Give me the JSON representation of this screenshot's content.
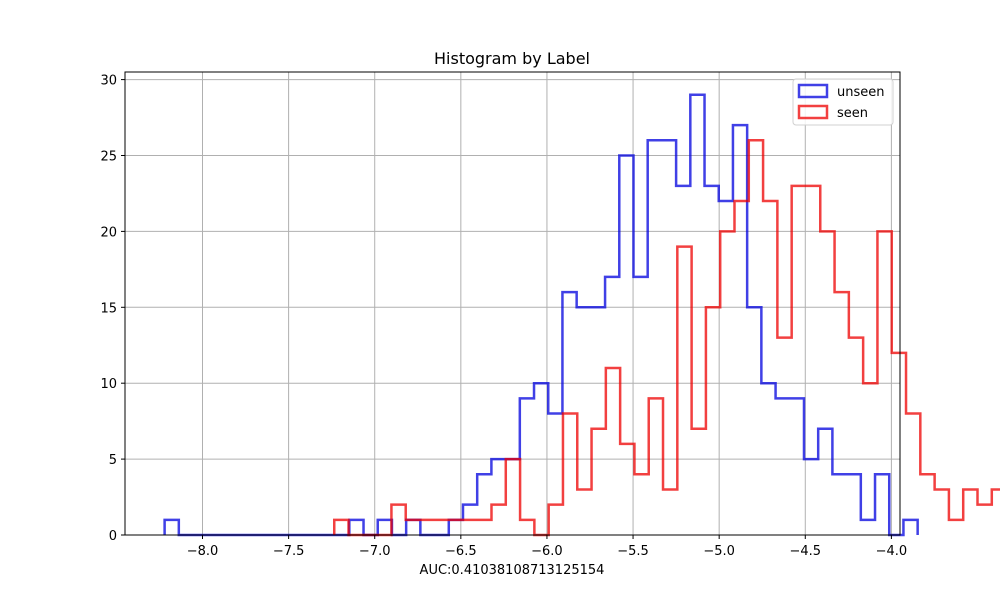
{
  "chart_data": {
    "type": "histogram",
    "title": "Histogram by Label",
    "xlabel": "AUC:0.41038108713125154",
    "ylabel": "",
    "xlim": [
      -8.45,
      -3.95
    ],
    "ylim": [
      0,
      30.5
    ],
    "xticks": [
      -8.0,
      -7.5,
      -7.0,
      -6.5,
      -6.0,
      -5.5,
      -5.0,
      -4.5,
      -4.0
    ],
    "xtick_labels": [
      "−8.0",
      "−7.5",
      "−7.0",
      "−6.5",
      "−6.0",
      "−5.5",
      "−5.0",
      "−4.5",
      "−4.0"
    ],
    "yticks": [
      0,
      5,
      10,
      15,
      20,
      25,
      30
    ],
    "ytick_labels": [
      "0",
      "5",
      "10",
      "15",
      "20",
      "25",
      "30"
    ],
    "grid": true,
    "legend_position": "top-right",
    "series": [
      {
        "name": "unseen",
        "color": "#0000dd",
        "bin_start": -8.22,
        "bin_width": 0.0825,
        "counts": [
          1,
          0,
          0,
          0,
          0,
          0,
          0,
          0,
          0,
          0,
          0,
          0,
          0,
          1,
          0,
          1,
          0,
          1,
          0,
          0,
          1,
          2,
          4,
          5,
          5,
          9,
          10,
          8,
          16,
          15,
          15,
          17,
          25,
          17,
          26,
          26,
          23,
          29,
          23,
          22,
          27,
          15,
          10,
          9,
          9,
          5,
          7,
          4,
          4,
          1,
          4,
          0,
          1
        ]
      },
      {
        "name": "seen",
        "color": "#ee0000",
        "bin_start": -7.235,
        "bin_width": 0.083,
        "counts": [
          1,
          0,
          0,
          0,
          2,
          1,
          1,
          1,
          1,
          1,
          1,
          2,
          5,
          1,
          0,
          2,
          8,
          3,
          7,
          11,
          6,
          4,
          9,
          3,
          19,
          7,
          15,
          20,
          22,
          26,
          22,
          13,
          23,
          23,
          20,
          16,
          13,
          10,
          20,
          12,
          8,
          4,
          3,
          1,
          3,
          2,
          3,
          1,
          2
        ]
      }
    ]
  }
}
